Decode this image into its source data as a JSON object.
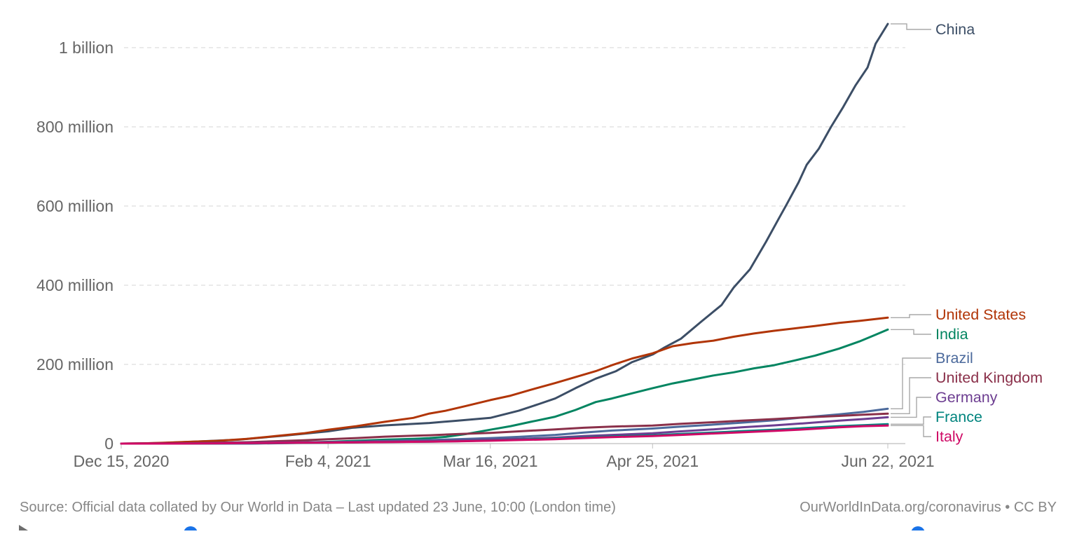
{
  "chart_data": {
    "type": "line",
    "title": "",
    "xlabel": "",
    "ylabel": "",
    "unit": "cumulative COVID-19 vaccine doses administered (millions)",
    "grid": "horizontal-dashed",
    "legend_position": "right",
    "x_unit": "days since Dec 15, 2020",
    "x_range_days": [
      0,
      189
    ],
    "ylim": [
      0,
      1070
    ],
    "y_ticks": [
      {
        "value": 0,
        "label": "0"
      },
      {
        "value": 200,
        "label": "200 million"
      },
      {
        "value": 400,
        "label": "400 million"
      },
      {
        "value": 600,
        "label": "600 million"
      },
      {
        "value": 800,
        "label": "800 million"
      },
      {
        "value": 1000,
        "label": "1 billion"
      }
    ],
    "x_ticks": [
      {
        "day": 0,
        "label": "Dec 15, 2020"
      },
      {
        "day": 51,
        "label": "Feb 4, 2021"
      },
      {
        "day": 91,
        "label": "Mar 16, 2021"
      },
      {
        "day": 131,
        "label": "Apr 25, 2021"
      },
      {
        "day": 189,
        "label": "Jun 22, 2021"
      }
    ],
    "series": [
      {
        "name": "China",
        "color": "#3C4E66",
        "points": [
          [
            0,
            0
          ],
          [
            10,
            1.5
          ],
          [
            17,
            4.5
          ],
          [
            29,
            10
          ],
          [
            40,
            20
          ],
          [
            51,
            31
          ],
          [
            57,
            40
          ],
          [
            65,
            46
          ],
          [
            76,
            52
          ],
          [
            83,
            58
          ],
          [
            91,
            65
          ],
          [
            98,
            83
          ],
          [
            103,
            100
          ],
          [
            107,
            114
          ],
          [
            112,
            140
          ],
          [
            117,
            164
          ],
          [
            122,
            183
          ],
          [
            126,
            206
          ],
          [
            131,
            225
          ],
          [
            134,
            243
          ],
          [
            138,
            265
          ],
          [
            143,
            308
          ],
          [
            148,
            350
          ],
          [
            151,
            394
          ],
          [
            155,
            440
          ],
          [
            159,
            510
          ],
          [
            162,
            566
          ],
          [
            164,
            603
          ],
          [
            167,
            660
          ],
          [
            169,
            704
          ],
          [
            172,
            745
          ],
          [
            175,
            800
          ],
          [
            178,
            850
          ],
          [
            181,
            904
          ],
          [
            184,
            950
          ],
          [
            186,
            1010
          ],
          [
            189,
            1060
          ]
        ]
      },
      {
        "name": "United States",
        "color": "#B13507",
        "points": [
          [
            0,
            0
          ],
          [
            5,
            0.6
          ],
          [
            10,
            2
          ],
          [
            17,
            4.6
          ],
          [
            24,
            7
          ],
          [
            31,
            12
          ],
          [
            38,
            19
          ],
          [
            45,
            26
          ],
          [
            51,
            35
          ],
          [
            58,
            44
          ],
          [
            65,
            55
          ],
          [
            72,
            65
          ],
          [
            76,
            76
          ],
          [
            80,
            83
          ],
          [
            85,
            95
          ],
          [
            91,
            110
          ],
          [
            96,
            121
          ],
          [
            101,
            136
          ],
          [
            107,
            153
          ],
          [
            112,
            168
          ],
          [
            117,
            183
          ],
          [
            121,
            198
          ],
          [
            126,
            215
          ],
          [
            131,
            228
          ],
          [
            136,
            246
          ],
          [
            141,
            254
          ],
          [
            146,
            260
          ],
          [
            151,
            270
          ],
          [
            156,
            278
          ],
          [
            161,
            285
          ],
          [
            166,
            291
          ],
          [
            171,
            297
          ],
          [
            177,
            305
          ],
          [
            182,
            310
          ],
          [
            189,
            318
          ]
        ]
      },
      {
        "name": "India",
        "color": "#038561",
        "points": [
          [
            0,
            0
          ],
          [
            31,
            0
          ],
          [
            32,
            0.2
          ],
          [
            38,
            1.5
          ],
          [
            45,
            3
          ],
          [
            51,
            4.4
          ],
          [
            58,
            7
          ],
          [
            65,
            10
          ],
          [
            72,
            12
          ],
          [
            76,
            14
          ],
          [
            80,
            17
          ],
          [
            85,
            24
          ],
          [
            91,
            35
          ],
          [
            96,
            44
          ],
          [
            101,
            55
          ],
          [
            107,
            68
          ],
          [
            112,
            85
          ],
          [
            117,
            105
          ],
          [
            121,
            114
          ],
          [
            126,
            127
          ],
          [
            131,
            140
          ],
          [
            136,
            152
          ],
          [
            141,
            162
          ],
          [
            146,
            172
          ],
          [
            151,
            180
          ],
          [
            156,
            190
          ],
          [
            161,
            198
          ],
          [
            166,
            210
          ],
          [
            171,
            222
          ],
          [
            177,
            240
          ],
          [
            182,
            258
          ],
          [
            186,
            275
          ],
          [
            189,
            288
          ]
        ]
      },
      {
        "name": "Brazil",
        "color": "#4C6A9C",
        "points": [
          [
            0,
            0
          ],
          [
            32,
            0
          ],
          [
            33,
            0.1
          ],
          [
            40,
            1
          ],
          [
            51,
            3.3
          ],
          [
            58,
            5
          ],
          [
            65,
            6.5
          ],
          [
            76,
            9
          ],
          [
            84,
            11.5
          ],
          [
            91,
            14
          ],
          [
            98,
            17
          ],
          [
            107,
            22
          ],
          [
            114,
            28
          ],
          [
            121,
            33
          ],
          [
            131,
            38
          ],
          [
            138,
            43
          ],
          [
            146,
            48
          ],
          [
            153,
            53
          ],
          [
            161,
            59
          ],
          [
            168,
            66
          ],
          [
            177,
            74
          ],
          [
            183,
            80
          ],
          [
            189,
            88
          ]
        ]
      },
      {
        "name": "United Kingdom",
        "color": "#8A304A",
        "points": [
          [
            0,
            0
          ],
          [
            5,
            0.5
          ],
          [
            10,
            0.9
          ],
          [
            17,
            1.4
          ],
          [
            24,
            2.5
          ],
          [
            31,
            3.6
          ],
          [
            38,
            6
          ],
          [
            45,
            8.4
          ],
          [
            51,
            11
          ],
          [
            58,
            14
          ],
          [
            65,
            17.5
          ],
          [
            72,
            20
          ],
          [
            76,
            21
          ],
          [
            83,
            24
          ],
          [
            91,
            27
          ],
          [
            98,
            31
          ],
          [
            107,
            36
          ],
          [
            114,
            40
          ],
          [
            121,
            43
          ],
          [
            131,
            45.5
          ],
          [
            138,
            50
          ],
          [
            146,
            54
          ],
          [
            153,
            58
          ],
          [
            161,
            62
          ],
          [
            168,
            66
          ],
          [
            177,
            70
          ],
          [
            183,
            73
          ],
          [
            189,
            75.5
          ]
        ]
      },
      {
        "name": "Germany",
        "color": "#6D3E91",
        "points": [
          [
            0,
            0
          ],
          [
            12,
            0
          ],
          [
            17,
            0.3
          ],
          [
            24,
            1.2
          ],
          [
            31,
            2
          ],
          [
            38,
            2.8
          ],
          [
            45,
            3.2
          ],
          [
            51,
            3.7
          ],
          [
            58,
            4.5
          ],
          [
            65,
            5.4
          ],
          [
            76,
            6.5
          ],
          [
            83,
            8
          ],
          [
            91,
            10
          ],
          [
            98,
            12
          ],
          [
            107,
            15
          ],
          [
            114,
            19
          ],
          [
            121,
            22
          ],
          [
            131,
            26
          ],
          [
            138,
            31
          ],
          [
            146,
            36
          ],
          [
            153,
            41
          ],
          [
            161,
            46
          ],
          [
            168,
            51
          ],
          [
            177,
            58
          ],
          [
            183,
            62
          ],
          [
            189,
            66.5
          ]
        ]
      },
      {
        "name": "France",
        "color": "#00847E",
        "points": [
          [
            0,
            0
          ],
          [
            12,
            0
          ],
          [
            17,
            0.1
          ],
          [
            24,
            0.5
          ],
          [
            31,
            1.1
          ],
          [
            38,
            1.5
          ],
          [
            45,
            1.8
          ],
          [
            51,
            2.2
          ],
          [
            58,
            3
          ],
          [
            65,
            3.9
          ],
          [
            76,
            4.7
          ],
          [
            83,
            6
          ],
          [
            91,
            8
          ],
          [
            98,
            10
          ],
          [
            107,
            12.5
          ],
          [
            114,
            15.5
          ],
          [
            121,
            18
          ],
          [
            131,
            21
          ],
          [
            138,
            24.5
          ],
          [
            146,
            28
          ],
          [
            153,
            31.5
          ],
          [
            161,
            35
          ],
          [
            168,
            39
          ],
          [
            177,
            44
          ],
          [
            183,
            46.5
          ],
          [
            189,
            49
          ]
        ]
      },
      {
        "name": "Italy",
        "color": "#CF0A66",
        "points": [
          [
            0,
            0
          ],
          [
            12,
            0
          ],
          [
            17,
            0.15
          ],
          [
            24,
            0.7
          ],
          [
            31,
            1.3
          ],
          [
            38,
            1.8
          ],
          [
            45,
            2.1
          ],
          [
            51,
            2.5
          ],
          [
            58,
            3.2
          ],
          [
            65,
            3.8
          ],
          [
            76,
            4.7
          ],
          [
            83,
            5.8
          ],
          [
            91,
            7.2
          ],
          [
            98,
            9
          ],
          [
            107,
            11
          ],
          [
            114,
            14
          ],
          [
            121,
            16.5
          ],
          [
            131,
            19
          ],
          [
            138,
            22
          ],
          [
            146,
            25.5
          ],
          [
            153,
            28.5
          ],
          [
            161,
            32
          ],
          [
            168,
            35.5
          ],
          [
            177,
            41
          ],
          [
            183,
            44
          ],
          [
            189,
            45.5
          ]
        ]
      }
    ]
  },
  "footer": {
    "source_left": "Source: Official data collated by Our World in Data – Last updated 23 June, 10:00 (London time)",
    "source_right": "OurWorldInData.org/coronavirus • CC BY"
  },
  "timeline": {
    "handle_color": "#1A73E8",
    "play_icon_color": "#666666"
  },
  "icons": {
    "play-icon": "▶"
  }
}
